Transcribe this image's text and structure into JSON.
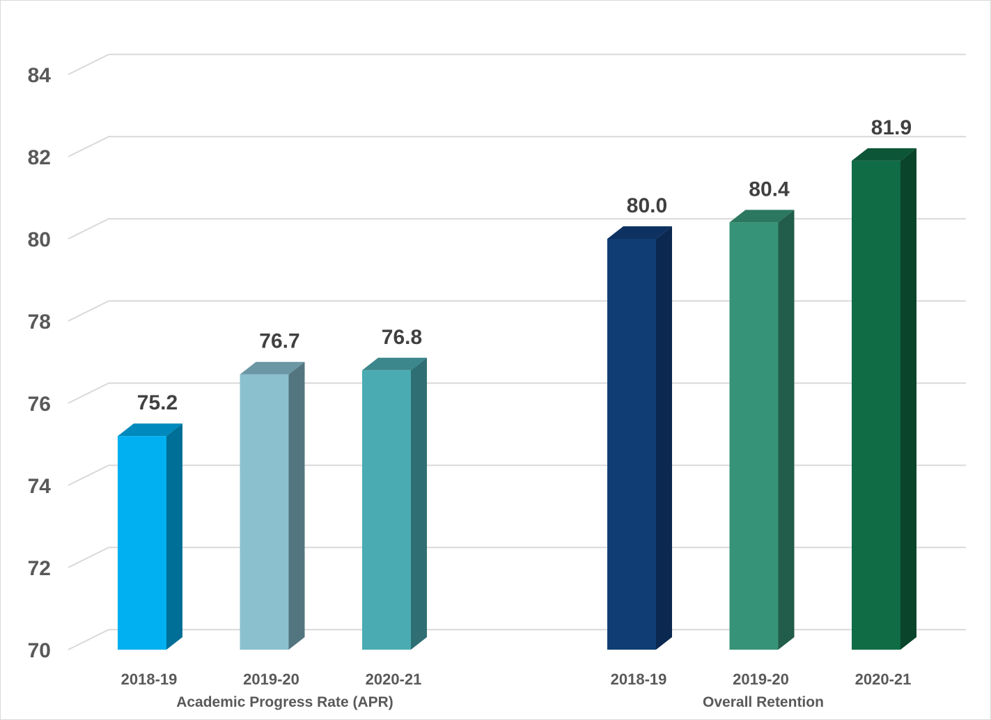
{
  "chart_data": {
    "type": "bar",
    "style": "3d-column",
    "title": "",
    "xlabel": "",
    "ylabel": "",
    "ylim": [
      70,
      84
    ],
    "yticks": [
      70,
      72,
      74,
      76,
      78,
      80,
      82,
      84
    ],
    "grid": true,
    "legend": "none",
    "groups": [
      {
        "name": "Academic Progress Rate (APR)",
        "bars": [
          {
            "category": "2018-19",
            "value": 75.2,
            "label": "75.2",
            "color": "#00b0f0",
            "side_color": "#006f98",
            "top_color": "#0089bc"
          },
          {
            "category": "2019-20",
            "value": 76.7,
            "label": "76.7",
            "color": "#8bc0cf",
            "side_color": "#52757f",
            "top_color": "#6b96a3"
          },
          {
            "category": "2020-21",
            "value": 76.8,
            "label": "76.8",
            "color": "#4aacb2",
            "side_color": "#2f6f73",
            "top_color": "#3b878c"
          }
        ]
      },
      {
        "name": "Overall Retention",
        "bars": [
          {
            "category": "2018-19",
            "value": 80.0,
            "label": "80.0",
            "color": "#103e74",
            "side_color": "#0b2850",
            "top_color": "#0d3160"
          },
          {
            "category": "2019-20",
            "value": 80.4,
            "label": "80.4",
            "color": "#379377",
            "side_color": "#225c4b",
            "top_color": "#2c775f"
          },
          {
            "category": "2020-21",
            "value": 81.9,
            "label": "81.9",
            "color": "#106c45",
            "side_color": "#0a442b",
            "top_color": "#0c5637"
          }
        ]
      }
    ]
  }
}
